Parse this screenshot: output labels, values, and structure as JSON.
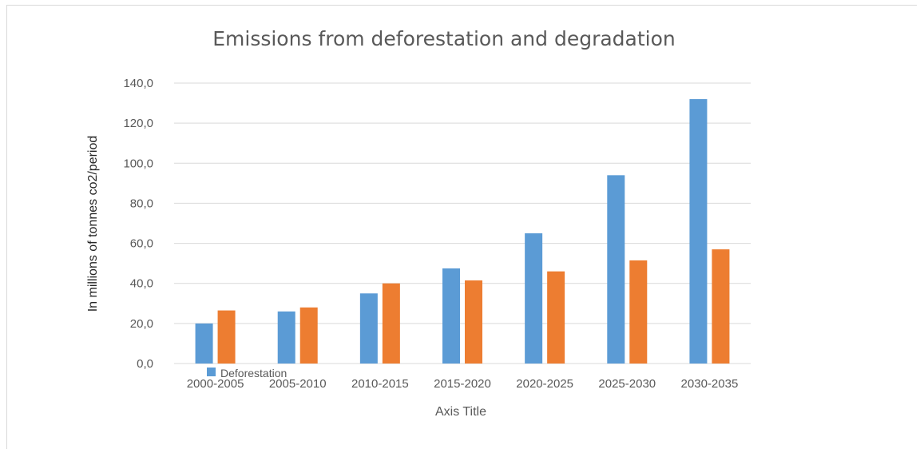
{
  "chart_data": {
    "type": "bar",
    "title": "Emissions from deforestation and degradation",
    "xlabel": "Axis Title",
    "ylabel": "In millions of tonnes co2/period",
    "ylim": [
      0,
      140
    ],
    "y_ticks": [
      "0,0",
      "20,0",
      "40,0",
      "60,0",
      "80,0",
      "100,0",
      "120,0",
      "140,0"
    ],
    "grid": true,
    "legend_position": "bottom-left",
    "categories": [
      "2000-2005",
      "2005-2010",
      "2010-2015",
      "2015-2020",
      "2020-2025",
      "2025-2030",
      "2030-2035"
    ],
    "series": [
      {
        "name": "Deforestation",
        "color": "#5b9bd5",
        "values": [
          20,
          26,
          35,
          47.5,
          65,
          94,
          132
        ]
      },
      {
        "name": "",
        "color": "#ed7d31",
        "values": [
          26.5,
          28,
          40,
          41.5,
          46,
          51.5,
          57
        ]
      }
    ]
  }
}
